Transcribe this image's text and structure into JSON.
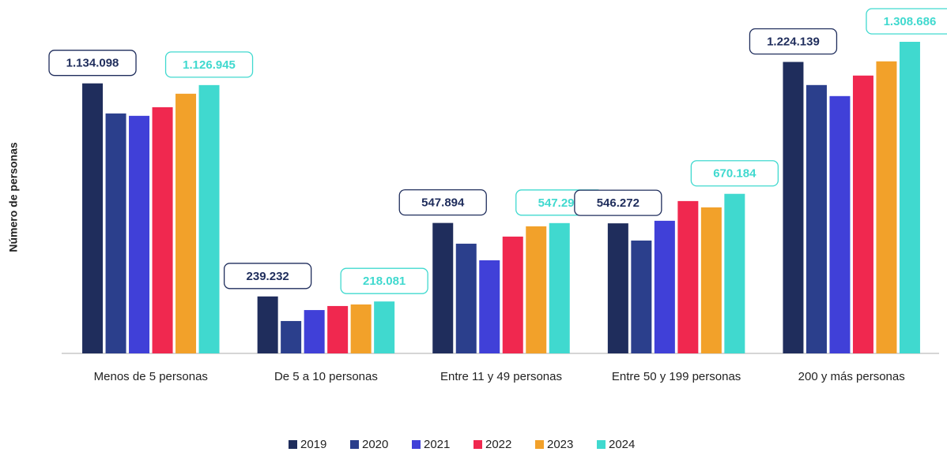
{
  "chart_data": {
    "type": "bar",
    "y_label": "Número de personas",
    "categories": [
      "Menos de 5 personas",
      "De 5 a 10 personas",
      "Entre 11 y 49 personas",
      "Entre 50 y 199 personas",
      "200 y más personas"
    ],
    "series": [
      {
        "name": "2019",
        "color": "#1f2d5c",
        "values": [
          1134098,
          239232,
          547894,
          546272,
          1224139
        ],
        "value_labels": [
          "1.134.098",
          "239.232",
          "547.894",
          "546.272",
          "1.224.139"
        ]
      },
      {
        "name": "2020",
        "color": "#2b3f8c",
        "values": [
          1007800,
          136000,
          460800,
          474000,
          1127100
        ]
      },
      {
        "name": "2021",
        "color": "#4040d8",
        "values": [
          997800,
          182000,
          391000,
          557000,
          1080700
        ]
      },
      {
        "name": "2022",
        "color": "#f0284f",
        "values": [
          1034000,
          199000,
          490600,
          639800,
          1166900
        ]
      },
      {
        "name": "2023",
        "color": "#f2a12a",
        "values": [
          1090600,
          205500,
          533700,
          613300,
          1226600
        ]
      },
      {
        "name": "2024",
        "color": "#40d9cf",
        "values": [
          1126945,
          218081,
          547290,
          670184,
          1308686
        ],
        "value_labels": [
          "1.126.945",
          "218.081",
          "547.290",
          "670.184",
          "1.308.686"
        ]
      }
    ]
  }
}
